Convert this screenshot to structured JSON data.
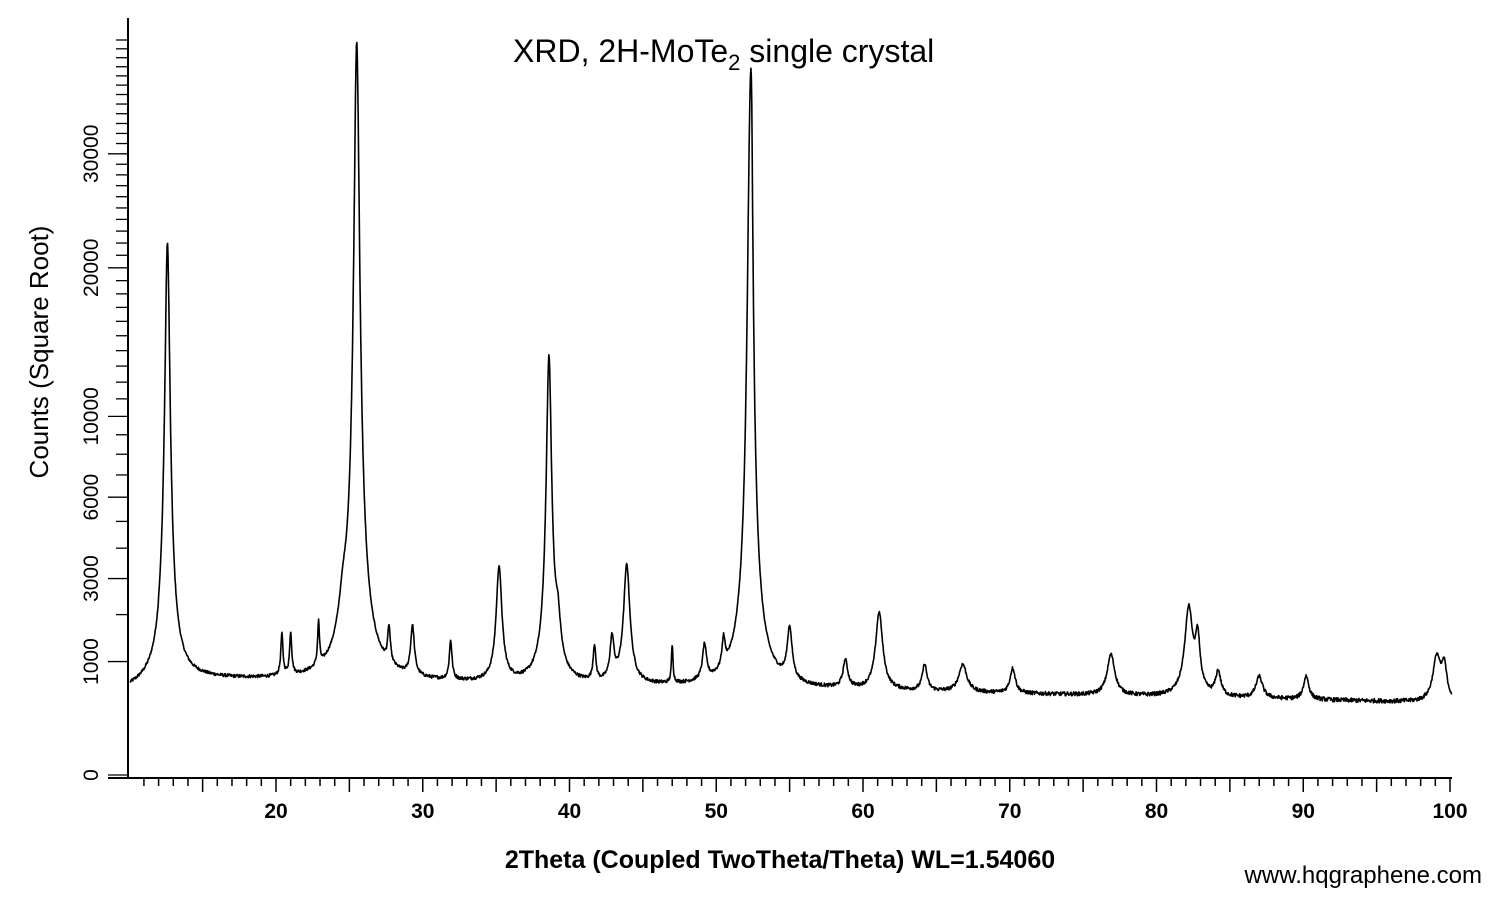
{
  "chart_data": {
    "type": "line",
    "title_main": "XRD, 2H-MoTe",
    "title_sub": "2",
    "title_rest": " single crystal",
    "xlabel": "2Theta (Coupled TwoTheta/Theta) WL=1.54060",
    "ylabel": "Counts (Square Root)",
    "y_scale": "sqrt",
    "xlim": [
      10,
      100
    ],
    "ylim": [
      0,
      42000
    ],
    "x_ticks": [
      20,
      30,
      40,
      50,
      60,
      70,
      80,
      90,
      100
    ],
    "y_ticks": [
      0,
      1000,
      3000,
      6000,
      10000,
      20000,
      30000
    ],
    "line_color": "#000000",
    "background": "#700",
    "peaks": [
      {
        "x": 12.6,
        "y": 21300,
        "w": 0.18
      },
      {
        "x": 20.4,
        "y": 780,
        "w": 0.08
      },
      {
        "x": 21.0,
        "y": 800,
        "w": 0.08
      },
      {
        "x": 22.9,
        "y": 900,
        "w": 0.07
      },
      {
        "x": 24.6,
        "y": 1000,
        "w": 0.35
      },
      {
        "x": 25.5,
        "y": 41000,
        "w": 0.2
      },
      {
        "x": 27.7,
        "y": 740,
        "w": 0.1
      },
      {
        "x": 29.3,
        "y": 960,
        "w": 0.14
      },
      {
        "x": 31.9,
        "y": 700,
        "w": 0.1
      },
      {
        "x": 35.2,
        "y": 2700,
        "w": 0.2
      },
      {
        "x": 38.6,
        "y": 13000,
        "w": 0.18
      },
      {
        "x": 39.2,
        "y": 900,
        "w": 0.2
      },
      {
        "x": 41.7,
        "y": 620,
        "w": 0.1
      },
      {
        "x": 42.9,
        "y": 780,
        "w": 0.15
      },
      {
        "x": 43.9,
        "y": 2800,
        "w": 0.22
      },
      {
        "x": 47.0,
        "y": 650,
        "w": 0.06
      },
      {
        "x": 49.2,
        "y": 620,
        "w": 0.15
      },
      {
        "x": 50.5,
        "y": 560,
        "w": 0.12
      },
      {
        "x": 52.3,
        "y": 28500,
        "w": 0.2
      },
      {
        "x": 52.4,
        "y": 14000,
        "w": 0.1
      },
      {
        "x": 55.0,
        "y": 1000,
        "w": 0.18
      },
      {
        "x": 58.8,
        "y": 440,
        "w": 0.18
      },
      {
        "x": 61.1,
        "y": 1500,
        "w": 0.25
      },
      {
        "x": 64.2,
        "y": 400,
        "w": 0.18
      },
      {
        "x": 66.8,
        "y": 420,
        "w": 0.3
      },
      {
        "x": 70.2,
        "y": 370,
        "w": 0.2
      },
      {
        "x": 76.9,
        "y": 640,
        "w": 0.28
      },
      {
        "x": 82.2,
        "y": 1700,
        "w": 0.28
      },
      {
        "x": 82.8,
        "y": 950,
        "w": 0.18
      },
      {
        "x": 84.2,
        "y": 350,
        "w": 0.2
      },
      {
        "x": 87.0,
        "y": 300,
        "w": 0.25
      },
      {
        "x": 90.2,
        "y": 320,
        "w": 0.2
      },
      {
        "x": 99.1,
        "y": 680,
        "w": 0.28
      },
      {
        "x": 99.6,
        "y": 500,
        "w": 0.2
      }
    ]
  },
  "watermark": "www.hqgraphene.com"
}
